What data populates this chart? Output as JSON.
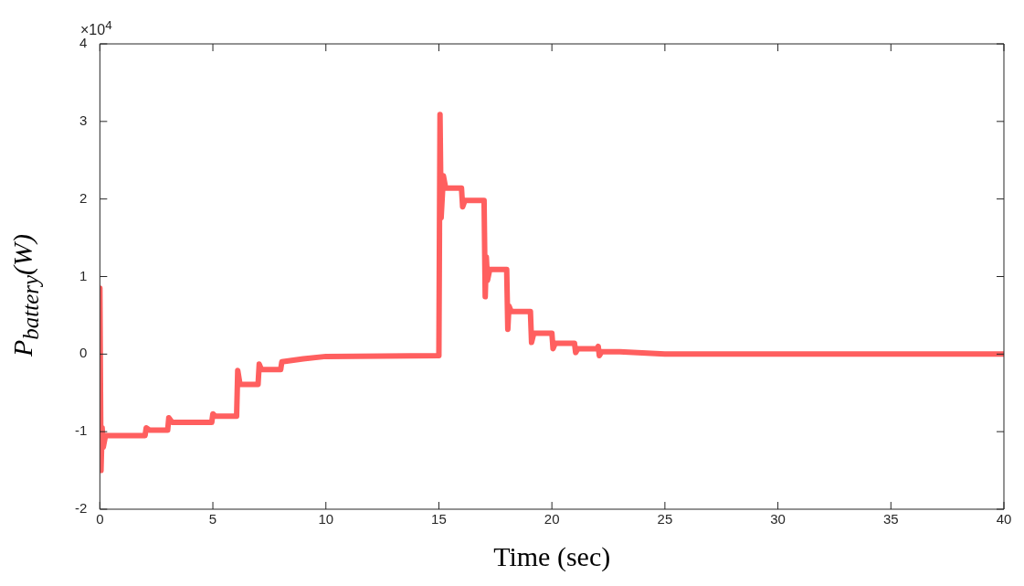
{
  "chart_data": {
    "type": "line",
    "xlabel": "Time (sec)",
    "ylabel": "P$_{battery}$(W)",
    "annotations": [
      "×10$^{4}$"
    ],
    "xlim": [
      0,
      40
    ],
    "xticks": [
      0,
      5,
      10,
      15,
      20,
      25,
      30,
      35,
      40
    ],
    "ylim": [
      -2,
      4
    ],
    "yticks": [
      -2,
      -1,
      0,
      1,
      2,
      3,
      4
    ],
    "grid": false,
    "legend": false,
    "marker": "none",
    "line_style": "solid",
    "series": [
      {
        "color": "#ff5f5f",
        "x": [
          0,
          0.05,
          0.1,
          0.15,
          0.25,
          2.0,
          2.05,
          2.2,
          3.0,
          3.05,
          3.2,
          4.95,
          5.0,
          5.1,
          6.05,
          6.1,
          6.2,
          7.0,
          7.05,
          7.15,
          8.0,
          8.05,
          9.0,
          10.0,
          15.0,
          15.05,
          15.1,
          15.2,
          15.3,
          16.0,
          16.05,
          16.15,
          17.0,
          17.05,
          17.1,
          17.15,
          17.25,
          18.0,
          18.05,
          18.1,
          18.2,
          19.05,
          19.1,
          19.2,
          20.0,
          20.05,
          20.15,
          21.0,
          21.05,
          21.15,
          22.0,
          22.05,
          22.1,
          22.2,
          23.0,
          25.0,
          40
        ],
        "values": [
          0.85,
          -1.5,
          -0.95,
          -1.2,
          -1.05,
          -1.05,
          -0.95,
          -0.98,
          -0.98,
          -0.82,
          -0.88,
          -0.88,
          -0.77,
          -0.8,
          -0.8,
          -0.21,
          -0.39,
          -0.39,
          -0.13,
          -0.2,
          -0.2,
          -0.1,
          -0.06,
          -0.03,
          -0.02,
          3.09,
          1.76,
          2.3,
          2.14,
          2.14,
          1.9,
          1.98,
          1.98,
          0.74,
          1.25,
          0.95,
          1.09,
          1.09,
          0.32,
          0.62,
          0.55,
          0.55,
          0.15,
          0.27,
          0.27,
          0.07,
          0.14,
          0.14,
          0.02,
          0.07,
          0.07,
          0.1,
          -0.02,
          0.03,
          0.03,
          0.0,
          0.0
        ]
      }
    ]
  }
}
